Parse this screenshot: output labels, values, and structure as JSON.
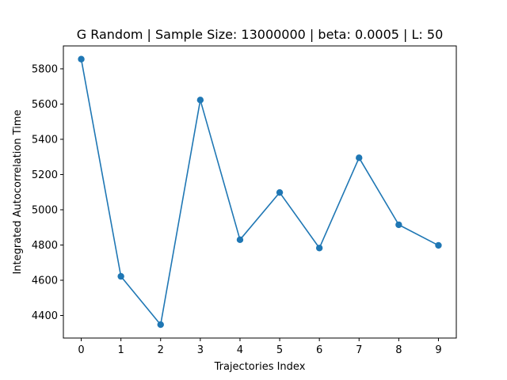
{
  "chart_data": {
    "type": "line",
    "title": "G Random | Sample Size: 13000000 | beta: 0.0005 | L: 50",
    "xlabel": "Trajectories Index",
    "ylabel": "Integrated Autocorrelation Time",
    "x": [
      0,
      1,
      2,
      3,
      4,
      5,
      6,
      7,
      8,
      9
    ],
    "series": [
      {
        "values": [
          5855,
          4622,
          4348,
          5623,
          4830,
          5098,
          4783,
          5295,
          4915,
          4798
        ],
        "color": "#1f77b4",
        "marker": "circle"
      }
    ],
    "xticks": [
      "0",
      "1",
      "2",
      "3",
      "4",
      "5",
      "6",
      "7",
      "8",
      "9"
    ],
    "yticks": [
      "4400",
      "4600",
      "4800",
      "5000",
      "5200",
      "5400",
      "5600",
      "5800"
    ],
    "xlim": [
      -0.45,
      9.45
    ],
    "ylim": [
      4272,
      5930
    ],
    "grid": false,
    "legend": "none"
  }
}
